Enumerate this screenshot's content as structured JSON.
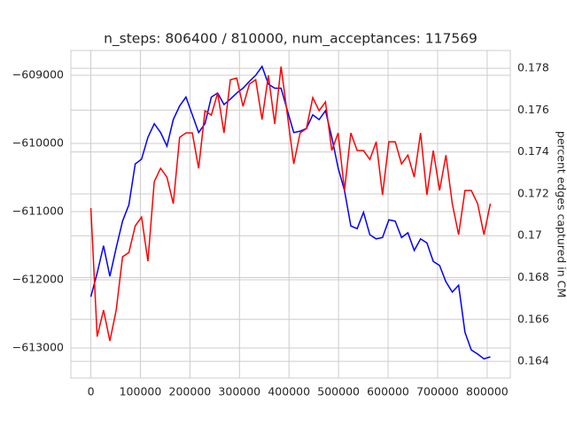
{
  "chart_data": {
    "type": "line",
    "title": "n_steps: 806400 / 810000, num_acceptances: 117569",
    "y2label": "percent edges captured in CM",
    "grid": true,
    "x": [
      0,
      12800,
      25600,
      38400,
      51200,
      64000,
      76800,
      89600,
      102400,
      115200,
      128000,
      140800,
      153600,
      166400,
      179200,
      192000,
      204800,
      217600,
      230400,
      243200,
      256000,
      268800,
      281600,
      294400,
      307200,
      320000,
      332800,
      345600,
      358400,
      371200,
      384000,
      396800,
      409600,
      422400,
      435200,
      448000,
      460800,
      473600,
      486400,
      499200,
      512000,
      524800,
      537600,
      550400,
      563200,
      576000,
      588800,
      601600,
      614400,
      627200,
      640000,
      652800,
      665600,
      678400,
      691200,
      704000,
      716800,
      729600,
      742400,
      755200,
      768000,
      780800,
      793600,
      806400
    ],
    "xlim": [
      -40320,
      846720
    ],
    "xticks": [
      0,
      100000,
      200000,
      300000,
      400000,
      500000,
      600000,
      700000,
      800000
    ],
    "ylim": [
      -613442,
      -608636
    ],
    "yticks": [
      {
        "value": -609000,
        "label": "−609000"
      },
      {
        "value": -610000,
        "label": "−610000"
      },
      {
        "value": -611000,
        "label": "−611000"
      },
      {
        "value": -612000,
        "label": "−612000"
      },
      {
        "value": -613000,
        "label": "−613000"
      }
    ],
    "y2lim": [
      0.1632,
      0.17885
    ],
    "y2ticks": [
      0.164,
      0.166,
      0.168,
      0.17,
      0.172,
      0.174,
      0.176,
      0.178
    ],
    "series": [
      {
        "color": "#0000ff",
        "values": [
          -612250,
          -611900,
          -611500,
          -611950,
          -611530,
          -611140,
          -610900,
          -610300,
          -610230,
          -609910,
          -609710,
          -609840,
          -610040,
          -609650,
          -609450,
          -609320,
          -609580,
          -609840,
          -609710,
          -609320,
          -609260,
          -609430,
          -609350,
          -609260,
          -609190,
          -609090,
          -609000,
          -608870,
          -609130,
          -609190,
          -609190,
          -609520,
          -609840,
          -609820,
          -609780,
          -609580,
          -609650,
          -609520,
          -609910,
          -610360,
          -610690,
          -611210,
          -611250,
          -611010,
          -611340,
          -611400,
          -611380,
          -611120,
          -611140,
          -611380,
          -611310,
          -611570,
          -611400,
          -611460,
          -611730,
          -611790,
          -612030,
          -612180,
          -612080,
          -612770,
          -613030,
          -613090,
          -613160,
          -613130
        ]
      },
      {
        "color": "#ff0000",
        "axis": "y2",
        "values": [
          0.17132,
          0.16518,
          0.16645,
          0.16497,
          0.16645,
          0.16899,
          0.1692,
          0.17047,
          0.17089,
          0.16878,
          0.17258,
          0.17322,
          0.1728,
          0.17153,
          0.1747,
          0.17491,
          0.17491,
          0.17322,
          0.17597,
          0.17576,
          0.17682,
          0.17491,
          0.17745,
          0.17753,
          0.17618,
          0.17724,
          0.17745,
          0.17555,
          0.17766,
          0.17534,
          0.17808,
          0.17576,
          0.17343,
          0.17491,
          0.17512,
          0.1766,
          0.17597,
          0.17639,
          0.17407,
          0.17491,
          0.17216,
          0.17491,
          0.17407,
          0.17407,
          0.17364,
          0.17449,
          0.17195,
          0.17449,
          0.17449,
          0.17343,
          0.17385,
          0.1728,
          0.17491,
          0.17195,
          0.17407,
          0.17216,
          0.17385,
          0.17153,
          0.17005,
          0.17216,
          0.17216,
          0.17153,
          0.17005,
          0.17153
        ]
      }
    ]
  }
}
